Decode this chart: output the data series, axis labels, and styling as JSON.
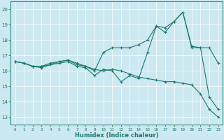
{
  "xlabel": "Humidex (Indice chaleur)",
  "xlim": [
    -0.5,
    23.5
  ],
  "ylim": [
    12.5,
    20.5
  ],
  "xticks": [
    0,
    1,
    2,
    3,
    4,
    5,
    6,
    7,
    8,
    9,
    10,
    11,
    12,
    13,
    14,
    15,
    16,
    17,
    18,
    19,
    20,
    21,
    22,
    23
  ],
  "yticks": [
    13,
    14,
    15,
    16,
    17,
    18,
    19,
    20
  ],
  "background_color": "#cce8f0",
  "line_color": "#1a7a6a",
  "curves": [
    {
      "x": [
        0,
        1,
        2,
        3,
        4,
        5,
        6,
        7,
        8,
        9,
        10,
        11,
        12,
        13,
        14,
        15,
        16,
        17,
        18,
        19,
        20,
        21,
        22,
        23
      ],
      "y": [
        16.6,
        16.5,
        16.3,
        16.3,
        16.4,
        16.6,
        16.7,
        16.4,
        16.3,
        16.1,
        16.0,
        16.1,
        16.0,
        15.8,
        15.6,
        15.5,
        15.4,
        15.3,
        15.3,
        15.2,
        15.1,
        14.5,
        13.5,
        13.0
      ]
    },
    {
      "x": [
        0,
        1,
        2,
        3,
        4,
        5,
        6,
        7,
        8,
        9,
        10,
        11,
        12,
        13,
        14,
        15,
        16,
        17,
        18,
        19,
        20,
        21,
        22,
        23
      ],
      "y": [
        16.6,
        16.5,
        16.3,
        16.3,
        16.5,
        16.6,
        16.7,
        16.5,
        16.3,
        16.0,
        17.2,
        17.5,
        17.5,
        17.5,
        17.7,
        18.0,
        18.9,
        18.8,
        19.2,
        19.8,
        17.6,
        17.5,
        17.5,
        16.5
      ]
    },
    {
      "x": [
        0,
        1,
        2,
        3,
        4,
        5,
        6,
        7,
        8,
        9,
        10,
        11,
        12,
        13,
        14,
        15,
        16,
        17,
        18,
        19,
        20,
        21,
        22,
        23
      ],
      "y": [
        16.6,
        16.5,
        16.3,
        16.2,
        16.4,
        16.5,
        16.6,
        16.3,
        16.2,
        15.7,
        16.1,
        16.0,
        15.3,
        15.7,
        15.5,
        17.2,
        18.9,
        18.5,
        19.2,
        19.8,
        17.5,
        17.5,
        14.3,
        13.5
      ]
    }
  ]
}
